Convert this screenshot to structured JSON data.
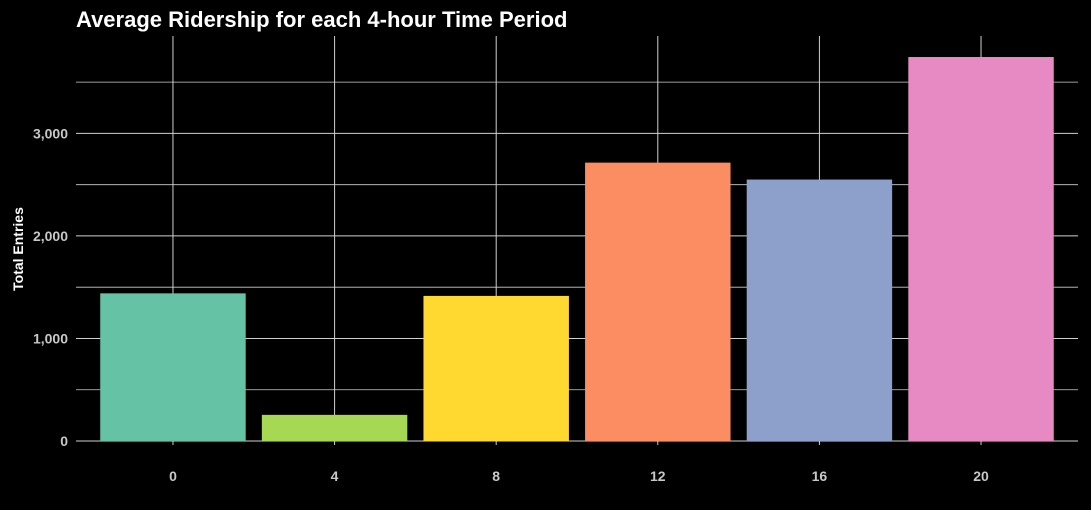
{
  "chart_data": {
    "type": "bar",
    "title": "Average Ridership for each 4-hour Time Period",
    "xlabel": "",
    "ylabel": "Total Entries",
    "categories": [
      "0",
      "4",
      "8",
      "12",
      "16",
      "20"
    ],
    "values": [
      1440,
      255,
      1415,
      2715,
      2550,
      3745
    ],
    "colors": [
      "#66c2a5",
      "#a6d854",
      "#ffd92f",
      "#fc8d62",
      "#8da0cb",
      "#e78ac3"
    ],
    "ylim": [
      0,
      3950
    ],
    "yticks": [
      0,
      1000,
      2000,
      3000
    ],
    "ytick_labels": [
      "0",
      "1,000",
      "2,000",
      "3,000"
    ],
    "grid": true,
    "legend": "none",
    "background": "#000000"
  }
}
